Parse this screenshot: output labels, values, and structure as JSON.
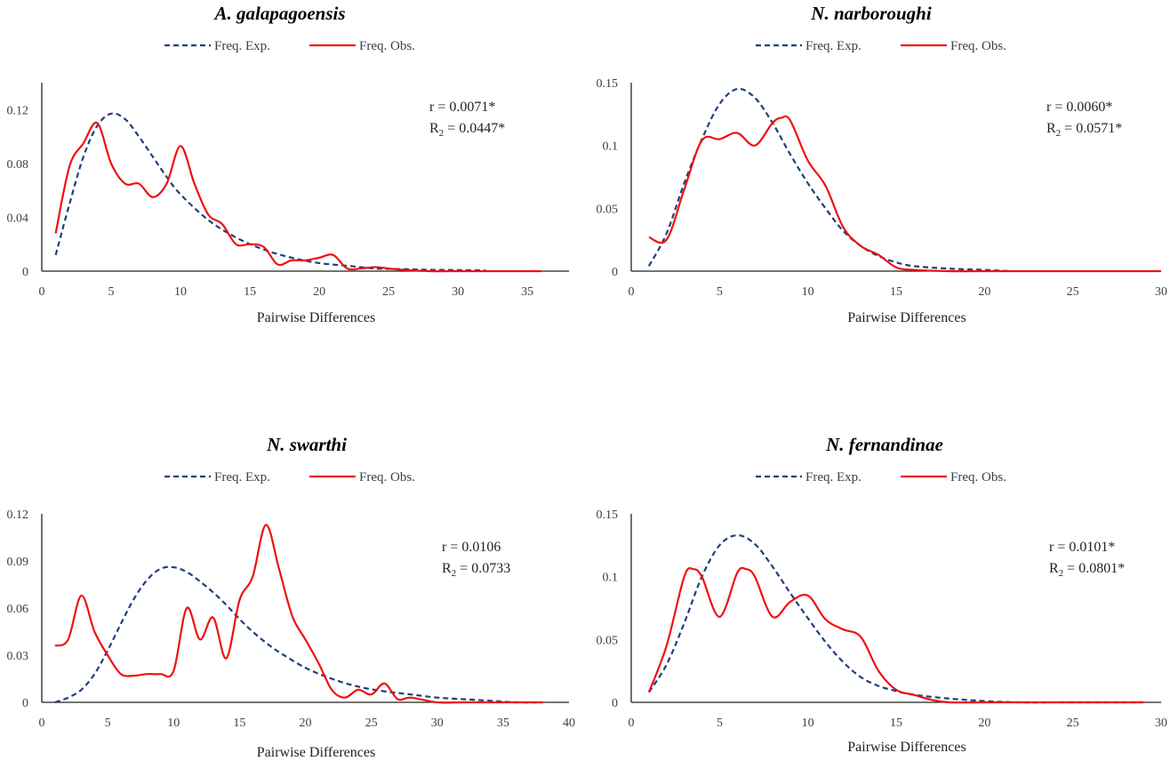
{
  "colors": {
    "expected": "#1f3f7a",
    "observed": "#ee1111",
    "axis": "#222222"
  },
  "chart_data": [
    {
      "type": "line",
      "title": "A. galapagoensis",
      "legend": [
        "Freq. Exp.",
        "Freq. Obs."
      ],
      "xlabel": "Pairwise Differences",
      "ylabel": "",
      "xlim": [
        0,
        38
      ],
      "ylim": [
        0,
        0.14
      ],
      "xticks": [
        0,
        5,
        10,
        15,
        20,
        25,
        30,
        35
      ],
      "yticks": [
        0,
        0.04,
        0.08,
        0.12
      ],
      "ytick_labels": [
        "0",
        "0.04",
        "0.08",
        "0.12"
      ],
      "stat_r": "r = 0.0071*",
      "stat_r2_main": "R",
      "stat_r2_sub": "2",
      "stat_r2_rest": " = 0.0447*",
      "series": [
        {
          "name": "Freq. Exp.",
          "x": [
            1,
            2,
            3,
            4,
            5,
            6,
            7,
            8,
            9,
            10,
            12,
            14,
            16,
            18,
            20,
            22,
            24,
            26,
            28,
            30,
            32
          ],
          "y": [
            0.012,
            0.05,
            0.085,
            0.108,
            0.117,
            0.113,
            0.1,
            0.085,
            0.07,
            0.057,
            0.038,
            0.025,
            0.016,
            0.01,
            0.006,
            0.004,
            0.002,
            0.0015,
            0.001,
            0.0008,
            0.0005
          ]
        },
        {
          "name": "Freq. Obs.",
          "x": [
            1,
            2,
            3,
            4,
            5,
            6,
            7,
            8,
            9,
            10,
            11,
            12,
            13,
            14,
            15,
            16,
            17,
            18,
            19,
            20,
            21,
            22,
            23,
            24,
            25,
            26,
            28,
            30,
            32,
            34,
            36
          ],
          "y": [
            0.028,
            0.078,
            0.095,
            0.11,
            0.08,
            0.065,
            0.065,
            0.055,
            0.065,
            0.093,
            0.065,
            0.042,
            0.035,
            0.02,
            0.02,
            0.018,
            0.005,
            0.008,
            0.008,
            0.01,
            0.012,
            0.002,
            0.002,
            0.003,
            0.002,
            0.001,
            0.0,
            0.0,
            0.0,
            0.0,
            0.0
          ]
        }
      ]
    },
    {
      "type": "line",
      "title": "N. narboroughi",
      "legend": [
        "Freq. Exp.",
        "Freq. Obs."
      ],
      "xlabel": "Pairwise Differences",
      "ylabel": "",
      "xlim": [
        0,
        30
      ],
      "ylim": [
        0,
        0.15
      ],
      "xticks": [
        0,
        5,
        10,
        15,
        20,
        25,
        30
      ],
      "yticks": [
        0,
        0.05,
        0.1,
        0.15
      ],
      "ytick_labels": [
        "0",
        "0.05",
        "0.1",
        "0.15"
      ],
      "stat_r": "r = 0.0060*",
      "stat_r2_main": "R",
      "stat_r2_sub": "2",
      "stat_r2_rest": " = 0.0571*",
      "series": [
        {
          "name": "Freq. Exp.",
          "x": [
            1,
            2,
            3,
            4,
            5,
            6,
            7,
            8,
            9,
            10,
            11,
            12,
            13,
            14,
            15,
            16,
            18,
            20,
            21.5
          ],
          "y": [
            0.004,
            0.03,
            0.07,
            0.105,
            0.133,
            0.145,
            0.138,
            0.118,
            0.093,
            0.07,
            0.05,
            0.032,
            0.02,
            0.012,
            0.007,
            0.004,
            0.002,
            0.001,
            0.0
          ]
        },
        {
          "name": "Freq. Obs.",
          "x": [
            1,
            2,
            3,
            4,
            5,
            6,
            7,
            8,
            8.5,
            9,
            10,
            11,
            12,
            13,
            14,
            15,
            16,
            18,
            20,
            22,
            25,
            28,
            30
          ],
          "y": [
            0.027,
            0.025,
            0.065,
            0.104,
            0.105,
            0.11,
            0.1,
            0.118,
            0.122,
            0.12,
            0.088,
            0.068,
            0.035,
            0.02,
            0.013,
            0.003,
            0.001,
            0.0,
            0.0,
            0.0,
            0.0,
            0.0,
            0.0
          ]
        }
      ]
    },
    {
      "type": "line",
      "title": "N. swarthi",
      "legend": [
        "Freq. Exp.",
        "Freq. Obs."
      ],
      "xlabel": "Pairwise Differences",
      "ylabel": "",
      "xlim": [
        0,
        40
      ],
      "ylim": [
        0,
        0.12
      ],
      "xticks": [
        0,
        5,
        10,
        15,
        20,
        25,
        30,
        35,
        40
      ],
      "yticks": [
        0,
        0.03,
        0.06,
        0.09,
        0.12
      ],
      "ytick_labels": [
        "0",
        "0.03",
        "0.06",
        "0.09",
        "0.12"
      ],
      "stat_r": "r = 0.0106",
      "stat_r2_main": "R",
      "stat_r2_sub": "2",
      "stat_r2_rest": " = 0.0733",
      "series": [
        {
          "name": "Freq. Exp.",
          "x": [
            1,
            2,
            3,
            4,
            5,
            6,
            7,
            8,
            9,
            10,
            11,
            12,
            13,
            14,
            15,
            16,
            17,
            18,
            20,
            22,
            24,
            26,
            28,
            30,
            32,
            34,
            36,
            38
          ],
          "y": [
            0.0,
            0.003,
            0.008,
            0.018,
            0.033,
            0.05,
            0.066,
            0.078,
            0.085,
            0.086,
            0.083,
            0.077,
            0.07,
            0.062,
            0.053,
            0.045,
            0.038,
            0.032,
            0.022,
            0.015,
            0.01,
            0.007,
            0.005,
            0.003,
            0.002,
            0.001,
            0.0,
            0.0
          ]
        },
        {
          "name": "Freq. Obs.",
          "x": [
            1,
            2,
            3,
            4,
            5,
            6,
            7,
            8,
            9,
            10,
            11,
            12,
            13,
            14,
            15,
            16,
            17,
            18,
            19,
            20,
            21,
            22,
            23,
            24,
            25,
            26,
            27,
            28,
            30,
            32,
            34,
            36,
            38
          ],
          "y": [
            0.036,
            0.04,
            0.068,
            0.045,
            0.03,
            0.018,
            0.017,
            0.018,
            0.018,
            0.02,
            0.06,
            0.04,
            0.054,
            0.028,
            0.065,
            0.08,
            0.113,
            0.085,
            0.055,
            0.04,
            0.025,
            0.008,
            0.003,
            0.008,
            0.005,
            0.012,
            0.002,
            0.003,
            0.0,
            0.0,
            0.0,
            0.0,
            0.0
          ]
        }
      ]
    },
    {
      "type": "line",
      "title": "N. fernandinae",
      "legend": [
        "Freq. Exp.",
        "Freq. Obs."
      ],
      "xlabel": "Pairwise Differences",
      "ylabel": "",
      "xlim": [
        0,
        30
      ],
      "ylim": [
        0,
        0.15
      ],
      "xticks": [
        0,
        5,
        10,
        15,
        20,
        25,
        30
      ],
      "yticks": [
        0,
        0.05,
        0.1,
        0.15
      ],
      "ytick_labels": [
        "0",
        "0.05",
        "0.1",
        "0.15"
      ],
      "stat_r": "r = 0.0101*",
      "stat_r2_main": "R",
      "stat_r2_sub": "2",
      "stat_r2_rest": " = 0.0801*",
      "series": [
        {
          "name": "Freq. Exp.",
          "x": [
            1,
            2,
            3,
            4,
            5,
            6,
            7,
            8,
            9,
            10,
            11,
            12,
            13,
            14,
            15,
            16,
            18,
            20,
            22,
            25,
            28,
            29
          ],
          "y": [
            0.008,
            0.03,
            0.063,
            0.1,
            0.125,
            0.133,
            0.126,
            0.108,
            0.087,
            0.067,
            0.048,
            0.032,
            0.02,
            0.013,
            0.009,
            0.006,
            0.003,
            0.001,
            0.0,
            0.0,
            0.0,
            0.0
          ]
        },
        {
          "name": "Freq. Obs.",
          "x": [
            1,
            2,
            3,
            3.5,
            4,
            5,
            6,
            6.5,
            7,
            8,
            9,
            10,
            11,
            12,
            13,
            14,
            15,
            16,
            17,
            18,
            20,
            25,
            29
          ],
          "y": [
            0.008,
            0.045,
            0.1,
            0.106,
            0.1,
            0.068,
            0.103,
            0.106,
            0.1,
            0.068,
            0.08,
            0.085,
            0.066,
            0.058,
            0.052,
            0.025,
            0.01,
            0.006,
            0.002,
            0.0,
            0.0,
            0.0,
            0.0
          ]
        }
      ]
    }
  ]
}
